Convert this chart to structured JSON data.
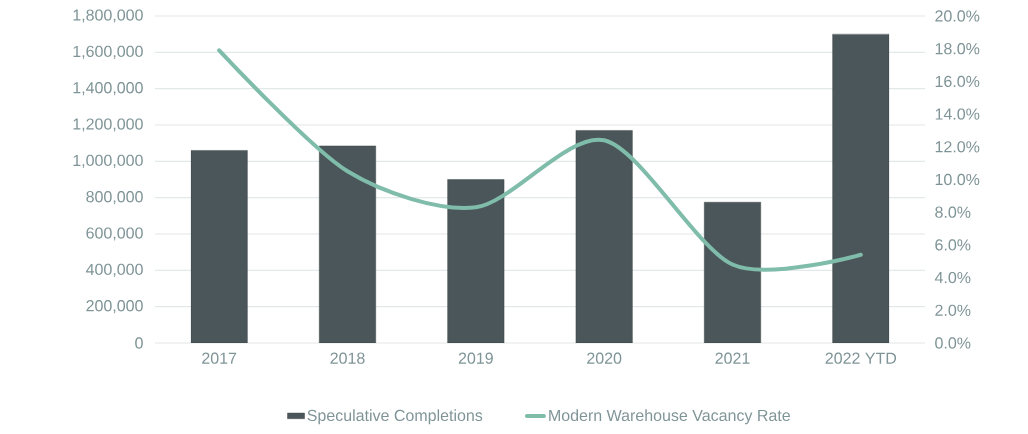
{
  "chart_data": {
    "type": "bar",
    "categories": [
      "2017",
      "2018",
      "2019",
      "2020",
      "2021",
      "2022 YTD"
    ],
    "series": [
      {
        "name": "Speculative Completions",
        "color": "#4a5659",
        "values": [
          1060000,
          1085000,
          900000,
          1170000,
          775000,
          1700000
        ]
      },
      {
        "name": "Modern Warehouse Vacancy Rate",
        "type": "line",
        "axis": "y2",
        "color": "#7fbcaa",
        "values": [
          17.9,
          10.5,
          8.3,
          12.4,
          4.8,
          5.4
        ]
      }
    ],
    "ylim": [
      0,
      1800000
    ],
    "yticks": [
      {
        "value": 0,
        "label": "0"
      },
      {
        "value": 200000,
        "label": "200,000"
      },
      {
        "value": 400000,
        "label": "400,000"
      },
      {
        "value": 600000,
        "label": "600,000"
      },
      {
        "value": 800000,
        "label": "800,000"
      },
      {
        "value": 1000000,
        "label": "1,000,000"
      },
      {
        "value": 1200000,
        "label": "1,200,000"
      },
      {
        "value": 1400000,
        "label": "1,400,000"
      },
      {
        "value": 1600000,
        "label": "1,600,000"
      },
      {
        "value": 1800000,
        "label": "1,800,000"
      }
    ],
    "y2lim": [
      0,
      20
    ],
    "y2ticks": [
      {
        "value": 0,
        "label": "0.0%"
      },
      {
        "value": 2,
        "label": "2.0%"
      },
      {
        "value": 4,
        "label": "4.0%"
      },
      {
        "value": 6,
        "label": "6.0%"
      },
      {
        "value": 8,
        "label": "8.0%"
      },
      {
        "value": 10,
        "label": "10.0%"
      },
      {
        "value": 12,
        "label": "12.0%"
      },
      {
        "value": 14,
        "label": "14.0%"
      },
      {
        "value": 16,
        "label": "16.0%"
      },
      {
        "value": 18,
        "label": "18.0%"
      },
      {
        "value": 20,
        "label": "20.0%"
      }
    ],
    "grid": "y",
    "legend": "bottom",
    "marker": "none",
    "line_style": "solid"
  }
}
